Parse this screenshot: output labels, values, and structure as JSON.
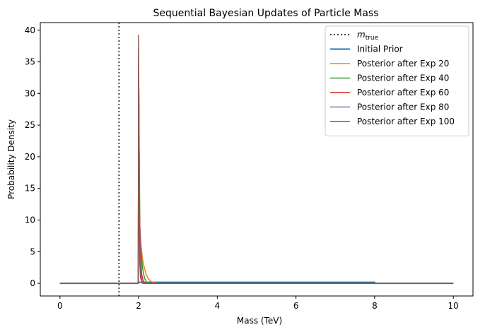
{
  "chart_data": {
    "type": "line",
    "title": "Sequential Bayesian Updates of Particle Mass",
    "xlabel": "Mass (TeV)",
    "ylabel": "Probability Density",
    "xlim": [
      -0.5,
      10.5
    ],
    "ylim": [
      -2,
      41.2
    ],
    "xticks": [
      "0",
      "2",
      "4",
      "6",
      "8",
      "10"
    ],
    "yticks": [
      "0",
      "5",
      "10",
      "15",
      "20",
      "25",
      "30",
      "35",
      "40"
    ],
    "grid": false,
    "legend_position": "top-right",
    "reference_line": {
      "label_main": "m",
      "label_sub": "true",
      "x": 1.5,
      "color": "#000000",
      "style": "dotted"
    },
    "series": [
      {
        "name": "Initial Prior",
        "color": "#1f77b4",
        "width": 2,
        "x": [
          0,
          1.99,
          2.0,
          8.0,
          8.001,
          10
        ],
        "y": [
          0,
          0,
          0.1667,
          0.1667,
          0,
          0
        ]
      },
      {
        "name": "Posterior after Exp 20",
        "color": "#ff7f0e",
        "width": 1.5,
        "x": [
          0,
          1.99,
          2.0,
          2.03,
          2.06,
          2.1,
          2.15,
          2.2,
          2.25,
          2.3,
          2.4,
          2.5,
          10
        ],
        "y": [
          0,
          0,
          30,
          9,
          6,
          3.8,
          2.3,
          1.3,
          0.7,
          0.35,
          0.1,
          0,
          0
        ]
      },
      {
        "name": "Posterior after Exp 40",
        "color": "#2ca02c",
        "width": 1.5,
        "x": [
          0,
          1.99,
          2.0,
          2.03,
          2.06,
          2.1,
          2.15,
          2.2,
          2.3,
          10
        ],
        "y": [
          0,
          0,
          33,
          9,
          5,
          2.4,
          0.8,
          0.2,
          0,
          0
        ]
      },
      {
        "name": "Posterior after Exp 60",
        "color": "#d62728",
        "width": 1.5,
        "x": [
          0,
          1.99,
          2.0,
          2.02,
          2.05,
          2.08,
          2.12,
          2.2,
          10
        ],
        "y": [
          0,
          0,
          35,
          12,
          4,
          1.3,
          0.3,
          0,
          0
        ]
      },
      {
        "name": "Posterior after Exp 80",
        "color": "#9467bd",
        "width": 1.5,
        "x": [
          0,
          1.99,
          2.0,
          2.02,
          2.04,
          2.07,
          2.1,
          2.2,
          10
        ],
        "y": [
          0,
          0,
          37,
          11,
          3,
          0.7,
          0.1,
          0,
          0
        ]
      },
      {
        "name": "Posterior after Exp 100",
        "color": "#8c564b",
        "width": 1.5,
        "x": [
          0,
          1.99,
          2.0,
          2.01,
          2.03,
          2.05,
          2.1,
          10
        ],
        "y": [
          0,
          0,
          39.2,
          14,
          3,
          0.8,
          0,
          0
        ]
      }
    ]
  }
}
